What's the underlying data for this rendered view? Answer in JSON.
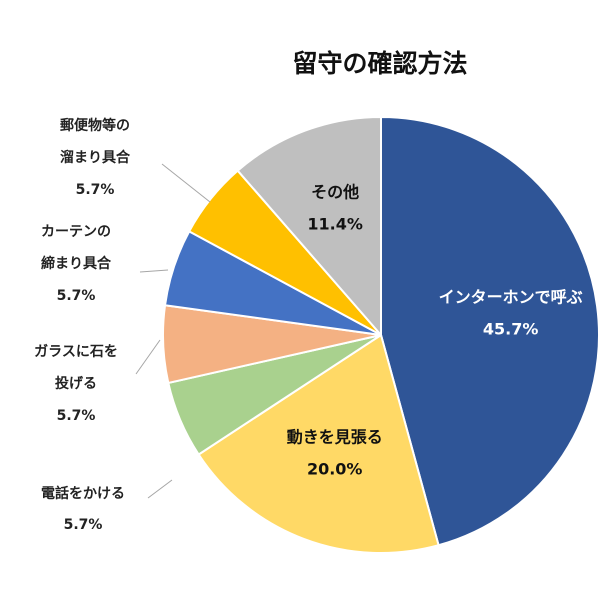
{
  "chart_data": {
    "type": "pie",
    "title": "留守の確認方法",
    "slices": [
      {
        "name": "インターホンで呼ぶ",
        "value": 45.7,
        "value_label": "45.7%",
        "color": "#2f5597"
      },
      {
        "name": "動きを見張る",
        "value": 20.0,
        "value_label": "20.0%",
        "color": "#ffd966"
      },
      {
        "name": "電話をかける",
        "value": 5.7,
        "value_label": "5.7%",
        "color": "#a9d18e",
        "label_lines": [
          "電話をかける"
        ]
      },
      {
        "name": "ガラスに石を投げる",
        "value": 5.7,
        "value_label": "5.7%",
        "color": "#f4b183",
        "label_lines": [
          "ガラスに石を",
          "投げる"
        ]
      },
      {
        "name": "カーテンの締まり具合",
        "value": 5.7,
        "value_label": "5.7%",
        "color": "#4472c4",
        "label_lines": [
          "カーテンの",
          "締まり具合"
        ]
      },
      {
        "name": "郵便物等の溜まり具合",
        "value": 5.7,
        "value_label": "5.7%",
        "color": "#ffc000",
        "label_lines": [
          "郵便物等の",
          "溜まり具合"
        ]
      },
      {
        "name": "その他",
        "value": 11.4,
        "value_label": "11.4%",
        "color": "#bfbfbf"
      }
    ],
    "start_angle": "12 o'clock",
    "direction": "clockwise",
    "legend": "none"
  }
}
